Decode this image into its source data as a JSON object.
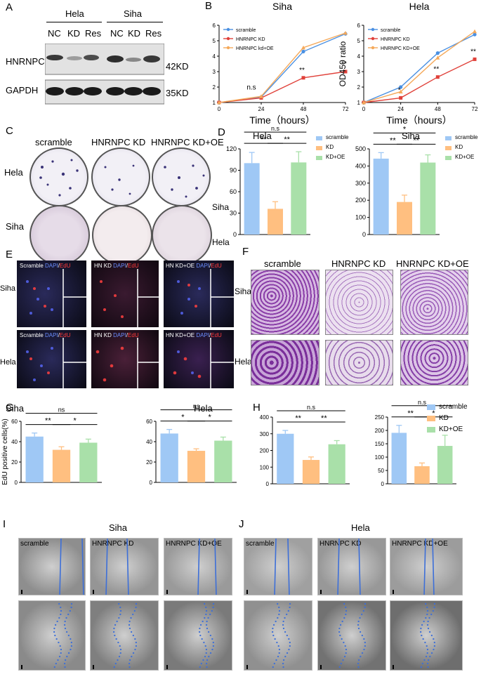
{
  "panels": {
    "A": "A",
    "B": "B",
    "C": "C",
    "D": "D",
    "E": "E",
    "F": "F",
    "G": "G",
    "H": "H",
    "I": "I",
    "J": "J"
  },
  "panelA": {
    "groups": [
      "Hela",
      "Siha"
    ],
    "lanes": [
      "NC",
      "KD",
      "Res",
      "NC",
      "KD",
      "Res"
    ],
    "rows": [
      "HNRNPC",
      "GAPDH"
    ],
    "sizes": [
      "42KD",
      "35KD"
    ]
  },
  "panelB": {
    "left_title": "Siha",
    "right_title": "Hela"
  },
  "panelC": {
    "cols": [
      "scramble",
      "HNRNPC KD",
      "HNRNPC KD+OE"
    ],
    "rows": [
      "Hela",
      "Siha"
    ]
  },
  "panelE": {
    "labels": [
      {
        "pre": "Scramble ",
        "dapi": "DAPI",
        "sep": "/",
        "edu": "EdU"
      },
      {
        "pre": "HN KD ",
        "dapi": "DAPI",
        "sep": "/",
        "edu": "EdU"
      },
      {
        "pre": "HN KD+OE ",
        "dapi": "DAPI",
        "sep": "/",
        "edu": "EdU"
      }
    ],
    "rows": [
      "Siha",
      "Hela"
    ]
  },
  "panelF": {
    "cols": [
      "scramble",
      "HNRNPC KD",
      "HNRNPC KD+OE"
    ],
    "rows": [
      "Siha",
      "Hela"
    ]
  },
  "panelI": {
    "title": "Siha",
    "labels": [
      "scramble",
      "HNRNPC KD",
      "HNRNPC KD+OE"
    ]
  },
  "panelJ": {
    "title": "Hela",
    "labels": [
      "scramble",
      "HNRNPC KD",
      "HNRNPC KD+OE"
    ]
  },
  "colors": {
    "scramble": "#9fc8f5",
    "kd": "#ffbf80",
    "oe": "#a9e0a9",
    "line_scramble": "#4a90e2",
    "line_kd": "#e0413a",
    "line_oe": "#f5a95a"
  },
  "chart_data": [
    {
      "id": "B-left",
      "type": "line",
      "title": "Siha",
      "xlabel": "Time（hours）",
      "ylabel": "OD450 ratio",
      "x": [
        0,
        24,
        48,
        72
      ],
      "ylim": [
        1,
        6
      ],
      "yticks": [
        1,
        2,
        3,
        4,
        5,
        6
      ],
      "series": [
        {
          "name": "scramble",
          "values": [
            1,
            1.35,
            4.3,
            5.45
          ]
        },
        {
          "name": "HNRNPC KD",
          "values": [
            1,
            1.3,
            2.6,
            3.0
          ]
        },
        {
          "name": "HNRNPC kd+OE",
          "values": [
            1,
            1.4,
            4.55,
            5.5
          ]
        }
      ],
      "annotations": [
        {
          "x": 24,
          "text": "n.s"
        },
        {
          "x": 48,
          "text": "**"
        },
        {
          "x": 72,
          "text": "**"
        }
      ],
      "legend": "top-left"
    },
    {
      "id": "B-right",
      "type": "line",
      "title": "Hela",
      "xlabel": "Time（hours）",
      "ylabel": "OD450 ratio",
      "x": [
        0,
        24,
        48,
        72
      ],
      "ylim": [
        1,
        6
      ],
      "yticks": [
        1,
        2,
        3,
        4,
        5,
        6
      ],
      "series": [
        {
          "name": "scramble",
          "values": [
            1,
            2.0,
            4.2,
            5.4
          ]
        },
        {
          "name": "HNRNPC KD",
          "values": [
            1,
            1.3,
            2.65,
            3.8
          ]
        },
        {
          "name": "HNRNPC KD+OE",
          "values": [
            1,
            1.7,
            3.9,
            5.6
          ]
        }
      ],
      "annotations": [
        {
          "x": 24,
          "text": "*"
        },
        {
          "x": 48,
          "text": "**"
        },
        {
          "x": 72,
          "text": "**"
        }
      ],
      "legend": "top-left"
    },
    {
      "id": "D-left",
      "type": "bar",
      "title": "Hela",
      "categories": [
        "scramble",
        "KD",
        "KD+OE"
      ],
      "values": [
        100,
        36,
        101
      ],
      "errors": [
        15,
        10,
        15
      ],
      "ylim": [
        0,
        120
      ],
      "yticks": [
        0,
        30,
        60,
        90,
        120
      ],
      "sig": [
        {
          "from": 0,
          "to": 1,
          "text": "**"
        },
        {
          "from": 1,
          "to": 2,
          "text": "**"
        },
        {
          "from": 0,
          "to": 2,
          "text": "n.s"
        }
      ],
      "legend": "top-right"
    },
    {
      "id": "D-right",
      "type": "bar",
      "title": "Siha",
      "categories": [
        "scramble",
        "KD",
        "KD+OE"
      ],
      "values": [
        443,
        190,
        420
      ],
      "errors": [
        35,
        40,
        45
      ],
      "ylim": [
        0,
        500
      ],
      "yticks": [
        0,
        100,
        200,
        300,
        400,
        500
      ],
      "sig": [
        {
          "from": 0,
          "to": 1,
          "text": "**"
        },
        {
          "from": 1,
          "to": 2,
          "text": "**"
        },
        {
          "from": 0,
          "to": 2,
          "text": "*"
        }
      ],
      "legend": "top-right"
    },
    {
      "id": "G-left",
      "type": "bar",
      "title": "Siha",
      "ylabel": "EdU positive cells(%)",
      "categories": [
        "scramble",
        "KD",
        "KD+OE"
      ],
      "values": [
        45,
        32,
        39
      ],
      "errors": [
        3.5,
        3,
        3.5
      ],
      "ylim": [
        0,
        60
      ],
      "yticks": [
        0,
        20,
        40,
        60
      ],
      "sig": [
        {
          "from": 0,
          "to": 1,
          "text": "**"
        },
        {
          "from": 1,
          "to": 2,
          "text": "*"
        },
        {
          "from": 0,
          "to": 2,
          "text": "ns"
        }
      ]
    },
    {
      "id": "G-right",
      "type": "bar",
      "title": "Hela",
      "categories": [
        "scramble",
        "KD",
        "KD+OE"
      ],
      "values": [
        48,
        31,
        41
      ],
      "errors": [
        4,
        2,
        3.5
      ],
      "ylim": [
        0,
        60
      ],
      "yticks": [
        0,
        20,
        40,
        60
      ],
      "sig": [
        {
          "from": 0,
          "to": 1,
          "text": "*"
        },
        {
          "from": 1,
          "to": 2,
          "text": "*"
        },
        {
          "from": 0,
          "to": 2,
          "text": "ns"
        }
      ]
    },
    {
      "id": "H-left",
      "type": "bar",
      "categories": [
        "scramble",
        "KD",
        "KD+OE"
      ],
      "values": [
        300,
        143,
        237
      ],
      "errors": [
        20,
        18,
        22
      ],
      "ylim": [
        0,
        400
      ],
      "yticks": [
        0,
        100,
        200,
        300,
        400
      ],
      "sig": [
        {
          "from": 0,
          "to": 1,
          "text": "**"
        },
        {
          "from": 1,
          "to": 2,
          "text": "**"
        },
        {
          "from": 0,
          "to": 2,
          "text": "n.s"
        }
      ]
    },
    {
      "id": "H-right",
      "type": "bar",
      "categories": [
        "scramble",
        "KD",
        "KD+OE"
      ],
      "values": [
        191,
        66,
        142
      ],
      "errors": [
        28,
        12,
        40
      ],
      "ylim": [
        0,
        250
      ],
      "yticks": [
        0,
        50,
        100,
        150,
        200,
        250
      ],
      "sig": [
        {
          "from": 0,
          "to": 1,
          "text": "**"
        },
        {
          "from": 1,
          "to": 2,
          "text": "*"
        },
        {
          "from": 0,
          "to": 2,
          "text": "n.s"
        }
      ],
      "legend": "top-right"
    }
  ]
}
